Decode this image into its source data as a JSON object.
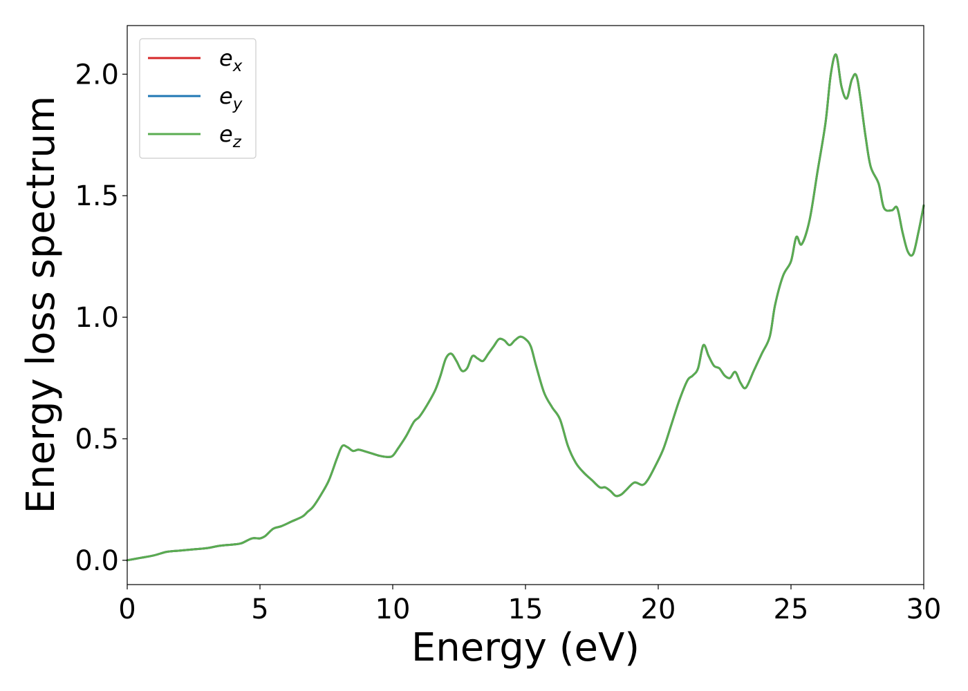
{
  "chart_data": {
    "type": "line",
    "title": "",
    "xlabel": "Energy (eV)",
    "ylabel": "Energy loss spectrum",
    "xlim": [
      0,
      30
    ],
    "ylim": [
      -0.1,
      2.2
    ],
    "xticks": [
      0,
      5,
      10,
      15,
      20,
      25,
      30
    ],
    "xtick_labels": [
      "0",
      "5",
      "10",
      "15",
      "20",
      "25",
      "30"
    ],
    "yticks": [
      0.0,
      0.5,
      1.0,
      1.5,
      2.0
    ],
    "ytick_labels": [
      "0.0",
      "0.5",
      "1.0",
      "1.5",
      "2.0"
    ],
    "grid": false,
    "legend_position": "top-left",
    "x": [
      0,
      0.5,
      1.0,
      1.5,
      2.0,
      2.5,
      3.0,
      3.5,
      4.0,
      4.3,
      4.7,
      5.0,
      5.2,
      5.5,
      5.8,
      6.2,
      6.6,
      6.8,
      7.0,
      7.3,
      7.6,
      7.9,
      8.1,
      8.3,
      8.5,
      8.7,
      8.9,
      9.2,
      9.5,
      9.8,
      10.0,
      10.2,
      10.5,
      10.8,
      11.0,
      11.3,
      11.6,
      11.8,
      12.0,
      12.2,
      12.4,
      12.6,
      12.8,
      13.0,
      13.2,
      13.4,
      13.6,
      13.8,
      14.0,
      14.2,
      14.4,
      14.6,
      14.8,
      15.0,
      15.2,
      15.4,
      15.7,
      16.0,
      16.3,
      16.6,
      16.9,
      17.2,
      17.5,
      17.8,
      18.0,
      18.2,
      18.4,
      18.6,
      18.8,
      19.1,
      19.4,
      19.6,
      19.9,
      20.2,
      20.5,
      20.8,
      21.1,
      21.3,
      21.5,
      21.7,
      21.9,
      22.1,
      22.3,
      22.5,
      22.7,
      22.9,
      23.1,
      23.3,
      23.6,
      23.9,
      24.2,
      24.4,
      24.7,
      25.0,
      25.2,
      25.4,
      25.7,
      26.0,
      26.3,
      26.5,
      26.7,
      26.9,
      27.1,
      27.3,
      27.5,
      27.8,
      28.0,
      28.3,
      28.5,
      28.8,
      29.0,
      29.2,
      29.4,
      29.6,
      29.8,
      30.0
    ],
    "series": [
      {
        "name": "e_x",
        "legend_base": "e",
        "legend_sub": "x",
        "color": "#d62728",
        "values": [
          0.0,
          0.01,
          0.02,
          0.035,
          0.04,
          0.045,
          0.05,
          0.06,
          0.065,
          0.07,
          0.09,
          0.09,
          0.1,
          0.13,
          0.14,
          0.16,
          0.18,
          0.2,
          0.22,
          0.27,
          0.33,
          0.42,
          0.47,
          0.465,
          0.45,
          0.455,
          0.45,
          0.44,
          0.43,
          0.425,
          0.43,
          0.46,
          0.51,
          0.57,
          0.59,
          0.64,
          0.7,
          0.76,
          0.83,
          0.85,
          0.82,
          0.78,
          0.79,
          0.84,
          0.83,
          0.82,
          0.85,
          0.88,
          0.91,
          0.905,
          0.885,
          0.905,
          0.92,
          0.91,
          0.88,
          0.8,
          0.69,
          0.63,
          0.58,
          0.47,
          0.4,
          0.36,
          0.33,
          0.3,
          0.3,
          0.285,
          0.265,
          0.27,
          0.29,
          0.32,
          0.31,
          0.33,
          0.39,
          0.46,
          0.56,
          0.66,
          0.74,
          0.76,
          0.79,
          0.885,
          0.84,
          0.8,
          0.79,
          0.76,
          0.75,
          0.775,
          0.73,
          0.71,
          0.78,
          0.85,
          0.92,
          1.05,
          1.17,
          1.23,
          1.33,
          1.3,
          1.4,
          1.6,
          1.8,
          2.0,
          2.08,
          1.95,
          1.9,
          1.98,
          1.98,
          1.75,
          1.62,
          1.55,
          1.45,
          1.44,
          1.45,
          1.35,
          1.27,
          1.26,
          1.35,
          1.46
        ]
      },
      {
        "name": "e_y",
        "legend_base": "e",
        "legend_sub": "y",
        "color": "#1f77b4",
        "values": [
          0.0,
          0.01,
          0.02,
          0.035,
          0.04,
          0.045,
          0.05,
          0.06,
          0.065,
          0.07,
          0.09,
          0.09,
          0.1,
          0.13,
          0.14,
          0.16,
          0.18,
          0.2,
          0.22,
          0.27,
          0.33,
          0.42,
          0.47,
          0.465,
          0.45,
          0.455,
          0.45,
          0.44,
          0.43,
          0.425,
          0.43,
          0.46,
          0.51,
          0.57,
          0.59,
          0.64,
          0.7,
          0.76,
          0.83,
          0.85,
          0.82,
          0.78,
          0.79,
          0.84,
          0.83,
          0.82,
          0.85,
          0.88,
          0.91,
          0.905,
          0.885,
          0.905,
          0.92,
          0.91,
          0.88,
          0.8,
          0.69,
          0.63,
          0.58,
          0.47,
          0.4,
          0.36,
          0.33,
          0.3,
          0.3,
          0.285,
          0.265,
          0.27,
          0.29,
          0.32,
          0.31,
          0.33,
          0.39,
          0.46,
          0.56,
          0.66,
          0.74,
          0.76,
          0.79,
          0.885,
          0.84,
          0.8,
          0.79,
          0.76,
          0.75,
          0.775,
          0.73,
          0.71,
          0.78,
          0.85,
          0.92,
          1.05,
          1.17,
          1.23,
          1.33,
          1.3,
          1.4,
          1.6,
          1.8,
          2.0,
          2.08,
          1.95,
          1.9,
          1.98,
          1.98,
          1.75,
          1.62,
          1.55,
          1.45,
          1.44,
          1.45,
          1.35,
          1.27,
          1.26,
          1.35,
          1.46
        ]
      },
      {
        "name": "e_z",
        "legend_base": "e",
        "legend_sub": "z",
        "color": "#5aac50",
        "values": [
          0.0,
          0.01,
          0.02,
          0.035,
          0.04,
          0.045,
          0.05,
          0.06,
          0.065,
          0.07,
          0.09,
          0.09,
          0.1,
          0.13,
          0.14,
          0.16,
          0.18,
          0.2,
          0.22,
          0.27,
          0.33,
          0.42,
          0.47,
          0.465,
          0.45,
          0.455,
          0.45,
          0.44,
          0.43,
          0.425,
          0.43,
          0.46,
          0.51,
          0.57,
          0.59,
          0.64,
          0.7,
          0.76,
          0.83,
          0.85,
          0.82,
          0.78,
          0.79,
          0.84,
          0.83,
          0.82,
          0.85,
          0.88,
          0.91,
          0.905,
          0.885,
          0.905,
          0.92,
          0.91,
          0.88,
          0.8,
          0.69,
          0.63,
          0.58,
          0.47,
          0.4,
          0.36,
          0.33,
          0.3,
          0.3,
          0.285,
          0.265,
          0.27,
          0.29,
          0.32,
          0.31,
          0.33,
          0.39,
          0.46,
          0.56,
          0.66,
          0.74,
          0.76,
          0.79,
          0.885,
          0.84,
          0.8,
          0.79,
          0.76,
          0.75,
          0.775,
          0.73,
          0.71,
          0.78,
          0.85,
          0.92,
          1.05,
          1.17,
          1.23,
          1.33,
          1.3,
          1.4,
          1.6,
          1.8,
          2.0,
          2.08,
          1.95,
          1.9,
          1.98,
          1.98,
          1.75,
          1.62,
          1.55,
          1.45,
          1.44,
          1.45,
          1.35,
          1.27,
          1.26,
          1.35,
          1.46
        ]
      }
    ]
  }
}
